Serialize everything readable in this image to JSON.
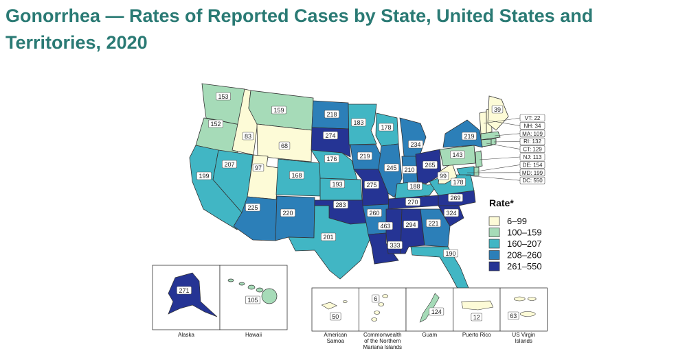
{
  "title": "Gonorrhea — Rates of Reported Cases by State, United States and Territories, 2020",
  "legend": {
    "title": "Rate*",
    "classes": [
      {
        "label": "6–99",
        "color": "#fdfbd7"
      },
      {
        "label": "100–159",
        "color": "#a6dbb8"
      },
      {
        "label": "160–207",
        "color": "#41b6c4"
      },
      {
        "label": "208–260",
        "color": "#2c7fb8"
      },
      {
        "label": "261–550",
        "color": "#253494"
      }
    ]
  },
  "states": [
    {
      "name": "WA",
      "rate": "153",
      "cls": 1
    },
    {
      "name": "OR",
      "rate": "152",
      "cls": 1
    },
    {
      "name": "CA",
      "rate": "199",
      "cls": 2
    },
    {
      "name": "ID",
      "rate": "83",
      "cls": 0
    },
    {
      "name": "NV",
      "rate": "207",
      "cls": 2
    },
    {
      "name": "MT",
      "rate": "159",
      "cls": 1
    },
    {
      "name": "WY",
      "rate": "68",
      "cls": 0
    },
    {
      "name": "UT",
      "rate": "97",
      "cls": 0
    },
    {
      "name": "AZ",
      "rate": "225",
      "cls": 3
    },
    {
      "name": "CO",
      "rate": "168",
      "cls": 2
    },
    {
      "name": "NM",
      "rate": "220",
      "cls": 3
    },
    {
      "name": "ND",
      "rate": "218",
      "cls": 3
    },
    {
      "name": "SD",
      "rate": "274",
      "cls": 4
    },
    {
      "name": "NE",
      "rate": "176",
      "cls": 2
    },
    {
      "name": "KS",
      "rate": "193",
      "cls": 2
    },
    {
      "name": "OK",
      "rate": "283",
      "cls": 4
    },
    {
      "name": "TX",
      "rate": "201",
      "cls": 2
    },
    {
      "name": "MN",
      "rate": "183",
      "cls": 2
    },
    {
      "name": "IA",
      "rate": "219",
      "cls": 3
    },
    {
      "name": "MO",
      "rate": "275",
      "cls": 4
    },
    {
      "name": "AR",
      "rate": "260",
      "cls": 3
    },
    {
      "name": "LA",
      "rate": "463",
      "cls": 4
    },
    {
      "name": "WI",
      "rate": "178",
      "cls": 2
    },
    {
      "name": "IL",
      "rate": "245",
      "cls": 3
    },
    {
      "name": "MI",
      "rate": "234",
      "cls": 3
    },
    {
      "name": "IN",
      "rate": "210",
      "cls": 3
    },
    {
      "name": "OH",
      "rate": "265",
      "cls": 4
    },
    {
      "name": "KY",
      "rate": "188",
      "cls": 2
    },
    {
      "name": "TN",
      "rate": "270",
      "cls": 4
    },
    {
      "name": "MS",
      "rate": "333",
      "cls": 4
    },
    {
      "name": "AL",
      "rate": "294",
      "cls": 4
    },
    {
      "name": "GA",
      "rate": "221",
      "cls": 3
    },
    {
      "name": "FL",
      "rate": "190",
      "cls": 2
    },
    {
      "name": "SC",
      "rate": "324",
      "cls": 4
    },
    {
      "name": "NC",
      "rate": "269",
      "cls": 4
    },
    {
      "name": "VA",
      "rate": "178",
      "cls": 2
    },
    {
      "name": "WV",
      "rate": "99",
      "cls": 0
    },
    {
      "name": "PA",
      "rate": "143",
      "cls": 1
    },
    {
      "name": "NY",
      "rate": "219",
      "cls": 3
    },
    {
      "name": "ME",
      "rate": "39",
      "cls": 0
    },
    {
      "name": "AK",
      "rate": "271",
      "cls": 4
    },
    {
      "name": "HI",
      "rate": "105",
      "cls": 1
    }
  ],
  "callouts": [
    {
      "label": "VT: 22",
      "cls": 0
    },
    {
      "label": "NH: 34",
      "cls": 0
    },
    {
      "label": "MA: 109",
      "cls": 1
    },
    {
      "label": "RI: 132",
      "cls": 1
    },
    {
      "label": "CT: 129",
      "cls": 1
    },
    {
      "label": "NJ: 113",
      "cls": 1
    },
    {
      "label": "DE: 154",
      "cls": 1
    },
    {
      "label": "MD: 199",
      "cls": 2
    },
    {
      "label": "DC: 550",
      "cls": 4
    }
  ],
  "insets": {
    "alaska": "Alaska",
    "hawaii": "Hawaii"
  },
  "territories": [
    {
      "name": "American Samoa",
      "rate": "50",
      "cls": 0
    },
    {
      "name": "Commonwealth of the Northern Mariana Islands",
      "rate": "6",
      "cls": 0
    },
    {
      "name": "Guam",
      "rate": "124",
      "cls": 1
    },
    {
      "name": "Puerto Rico",
      "rate": "12",
      "cls": 0
    },
    {
      "name": "US Virgin Islands",
      "rate": "63",
      "cls": 0
    }
  ]
}
